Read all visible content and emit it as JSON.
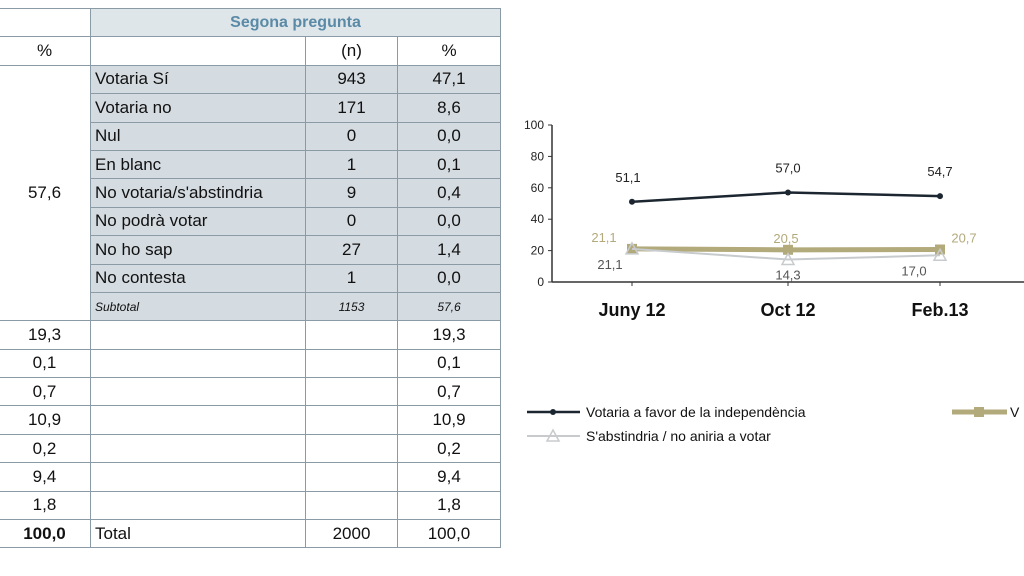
{
  "table": {
    "header_title": "Segona pregunta",
    "col_headers": [
      "%",
      "",
      "(n)",
      "%"
    ],
    "first_pct_merged": "57,6",
    "rows": [
      {
        "label": "Votaria Sí",
        "n": "943",
        "pct": "47,1"
      },
      {
        "label": "Votaria no",
        "n": "171",
        "pct": "8,6"
      },
      {
        "label": "Nul",
        "n": "0",
        "pct": "0,0"
      },
      {
        "label": "En blanc",
        "n": "1",
        "pct": "0,1"
      },
      {
        "label": "No votaria/s'abstindria",
        "n": "9",
        "pct": "0,4"
      },
      {
        "label": "No podrà votar",
        "n": "0",
        "pct": "0,0"
      },
      {
        "label": "No ho sap",
        "n": "27",
        "pct": "1,4"
      },
      {
        "label": "No contesta",
        "n": "1",
        "pct": "0,0"
      }
    ],
    "subtotal": {
      "label": "Subtotal",
      "n": "1153",
      "pct": "57,6"
    },
    "other_rows": [
      {
        "left": "19,3",
        "right": "19,3"
      },
      {
        "left": "0,1",
        "right": "0,1"
      },
      {
        "left": "0,7",
        "right": "0,7"
      },
      {
        "left": "10,9",
        "right": "10,9"
      },
      {
        "left": "0,2",
        "right": "0,2"
      },
      {
        "left": "9,4",
        "right": "9,4"
      },
      {
        "left": "1,8",
        "right": "1,8"
      }
    ],
    "total": {
      "left": "100,0",
      "label": "Total",
      "n": "2000",
      "pct": "100,0"
    }
  },
  "chart_data": {
    "type": "line",
    "categories": [
      "Juny 12",
      "Oct 12",
      "Feb.13"
    ],
    "ylim": [
      0,
      100
    ],
    "yticks": [
      "0",
      "20",
      "40",
      "60",
      "80",
      "100"
    ],
    "series": [
      {
        "name": "Votaria a favor de la independència",
        "color": "#1c2630",
        "values": [
          51.1,
          57.0,
          54.7
        ],
        "labels": [
          "51,1",
          "57,0",
          "54,7"
        ]
      },
      {
        "name": "V",
        "color": "#b3aa7c",
        "values": [
          21.1,
          20.5,
          20.7
        ],
        "labels": [
          "21,1",
          "20,5",
          "20,7"
        ]
      },
      {
        "name": "S'abstindria / no aniria a votar",
        "color": "#c8cbcd",
        "values": [
          21.1,
          14.3,
          17.0
        ],
        "labels": [
          "21,1",
          "14,3",
          "17,0"
        ]
      }
    ],
    "legend": "bottom"
  }
}
